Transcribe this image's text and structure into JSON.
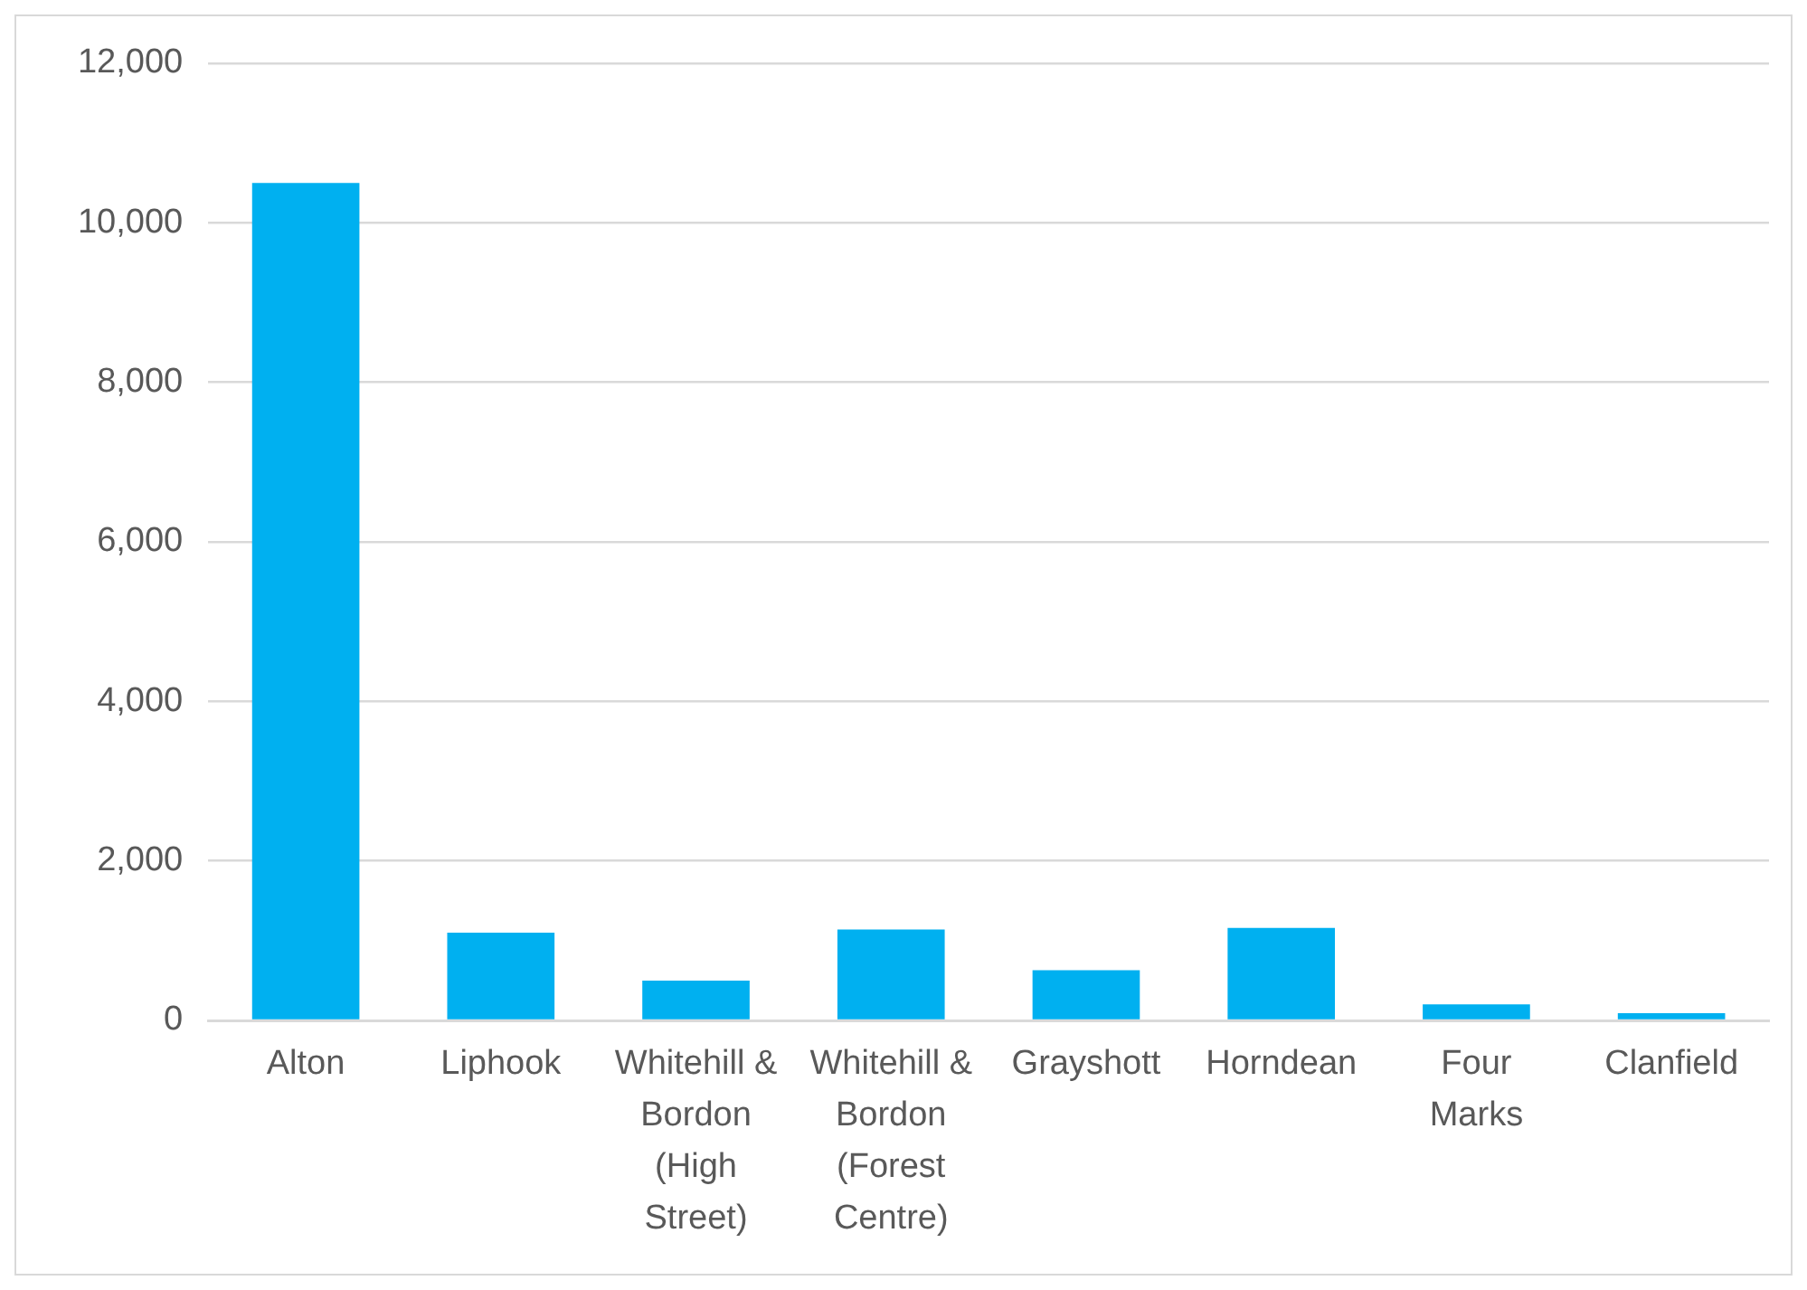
{
  "chart_data": {
    "type": "bar",
    "categories": [
      "Alton",
      "Liphook",
      "Whitehill & Bordon (High Street)",
      "Whitehill & Bordon (Forest Centre)",
      "Grayshott",
      "Horndean",
      "Four Marks",
      "Clanfield"
    ],
    "values": [
      10500,
      1100,
      500,
      1140,
      630,
      1160,
      200,
      90
    ],
    "color": "#00b0f0",
    "ylim": [
      0,
      12000
    ],
    "yticks": [
      {
        "value": 0,
        "label": "0"
      },
      {
        "value": 2000,
        "label": "2,000"
      },
      {
        "value": 4000,
        "label": "4,000"
      },
      {
        "value": 6000,
        "label": "6,000"
      },
      {
        "value": 8000,
        "label": "8,000"
      },
      {
        "value": 10000,
        "label": "10,000"
      },
      {
        "value": 12000,
        "label": "12,000"
      }
    ],
    "grid": "y",
    "legend": false
  }
}
